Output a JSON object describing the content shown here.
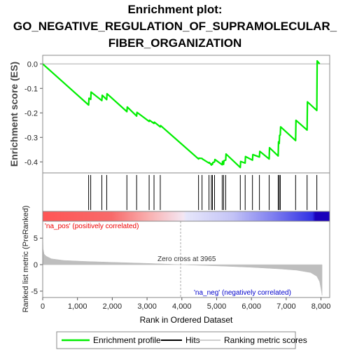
{
  "title_lines": [
    "Enrichment plot:",
    "GO_NEGATIVE_REGULATION_OF_SUPRAMOLECULAR_",
    "FIBER_ORGANIZATION"
  ],
  "colors": {
    "enrichment": "#00ee00",
    "hits": "#000000",
    "ranking": "#bebebe",
    "pos_label": "#ee0000",
    "neg_label": "#0000cc",
    "zero_line": "#aaaaaa"
  },
  "chart_data": {
    "type": "line",
    "x_range": [
      0,
      8250
    ],
    "x_ticks": [
      0,
      1000,
      2000,
      3000,
      4000,
      5000,
      6000,
      7000,
      8000
    ],
    "x_tick_labels": [
      "0",
      "1,000",
      "2,000",
      "3,000",
      "4,000",
      "5,000",
      "6,000",
      "7,000",
      "8,000"
    ],
    "xlabel": "Rank in Ordered Dataset",
    "es_panel": {
      "ylabel": "Enrichment score (ES)",
      "ylim": [
        -0.445,
        0.035
      ],
      "y_ticks": [
        0.0,
        -0.1,
        -0.2,
        -0.3,
        -0.4
      ],
      "y_tick_labels": [
        "0.0",
        "-0.1",
        "-0.2",
        "-0.3",
        "-0.4"
      ],
      "points": [
        [
          0,
          0.0
        ],
        [
          1320,
          -0.168
        ],
        [
          1330,
          -0.14
        ],
        [
          1380,
          -0.145
        ],
        [
          1390,
          -0.115
        ],
        [
          1700,
          -0.15
        ],
        [
          1710,
          -0.128
        ],
        [
          1840,
          -0.146
        ],
        [
          1850,
          -0.122
        ],
        [
          2420,
          -0.195
        ],
        [
          2430,
          -0.176
        ],
        [
          2700,
          -0.213
        ],
        [
          2710,
          -0.198
        ],
        [
          3060,
          -0.235
        ],
        [
          3070,
          -0.23
        ],
        [
          3200,
          -0.243
        ],
        [
          3210,
          -0.238
        ],
        [
          3380,
          -0.257
        ],
        [
          3390,
          -0.252
        ],
        [
          4480,
          -0.388
        ],
        [
          4490,
          -0.385
        ],
        [
          4580,
          -0.386
        ],
        [
          4590,
          -0.388
        ],
        [
          4780,
          -0.405
        ],
        [
          4790,
          -0.402
        ],
        [
          4850,
          -0.413
        ],
        [
          4860,
          -0.408
        ],
        [
          4880,
          -0.41
        ],
        [
          4890,
          -0.403
        ],
        [
          4940,
          -0.4
        ],
        [
          4950,
          -0.39
        ],
        [
          5160,
          -0.412
        ],
        [
          5170,
          -0.398
        ],
        [
          5200,
          -0.41
        ],
        [
          5210,
          -0.395
        ],
        [
          5260,
          -0.393
        ],
        [
          5270,
          -0.368
        ],
        [
          5680,
          -0.423
        ],
        [
          5690,
          -0.398
        ],
        [
          5820,
          -0.405
        ],
        [
          5830,
          -0.378
        ],
        [
          6030,
          -0.393
        ],
        [
          6040,
          -0.37
        ],
        [
          6230,
          -0.38
        ],
        [
          6240,
          -0.357
        ],
        [
          6510,
          -0.388
        ],
        [
          6520,
          -0.342
        ],
        [
          6770,
          -0.376
        ],
        [
          6780,
          -0.318
        ],
        [
          6800,
          -0.325
        ],
        [
          6810,
          -0.292
        ],
        [
          6830,
          -0.29
        ],
        [
          6840,
          -0.257
        ],
        [
          7270,
          -0.313
        ],
        [
          7280,
          -0.23
        ],
        [
          7600,
          -0.27
        ],
        [
          7610,
          -0.155
        ],
        [
          7880,
          -0.19
        ],
        [
          7890,
          0.012
        ],
        [
          7960,
          0.0
        ]
      ]
    },
    "hits": [
      1320,
      1380,
      1700,
      1840,
      2420,
      2700,
      3060,
      3200,
      3380,
      4480,
      4580,
      4780,
      4850,
      4880,
      4940,
      5160,
      5200,
      5260,
      5680,
      5820,
      6030,
      6230,
      6510,
      6770,
      6800,
      6830,
      7270,
      7600,
      7880
    ],
    "ranked_metric": {
      "ylabel": "Ranked list metric (PreRanked)",
      "ylim": [
        -6.2,
        8.2
      ],
      "y_ticks": [
        5,
        0,
        -5
      ],
      "y_tick_labels": [
        "5",
        "0",
        "-5"
      ],
      "profile": [
        [
          0,
          5.5
        ],
        [
          10,
          3.0
        ],
        [
          40,
          2.0
        ],
        [
          100,
          1.6
        ],
        [
          250,
          1.1
        ],
        [
          600,
          0.8
        ],
        [
          1200,
          0.62
        ],
        [
          2000,
          0.45
        ],
        [
          3000,
          0.25
        ],
        [
          3600,
          0.1
        ],
        [
          3965,
          0.0
        ],
        [
          4600,
          -0.15
        ],
        [
          5200,
          -0.28
        ],
        [
          6000,
          -0.5
        ],
        [
          6800,
          -0.8
        ],
        [
          7300,
          -1.05
        ],
        [
          7700,
          -1.5
        ],
        [
          7880,
          -2.2
        ],
        [
          7960,
          -3.2
        ],
        [
          8000,
          -4.6
        ],
        [
          8030,
          -5.8
        ]
      ],
      "zero_cross_label": "Zero cross at 3965",
      "zero_cross": 3965,
      "pos_label": "'na_pos' (positively correlated)",
      "neg_label": "'na_neg' (negatively correlated)"
    },
    "legend": [
      {
        "label": "Enrichment profile",
        "color": "#00ee00",
        "kind": "line"
      },
      {
        "label": "Hits",
        "color": "#000000",
        "kind": "line"
      },
      {
        "label": "Ranking metric scores",
        "color": "#bebebe",
        "kind": "line"
      }
    ]
  }
}
